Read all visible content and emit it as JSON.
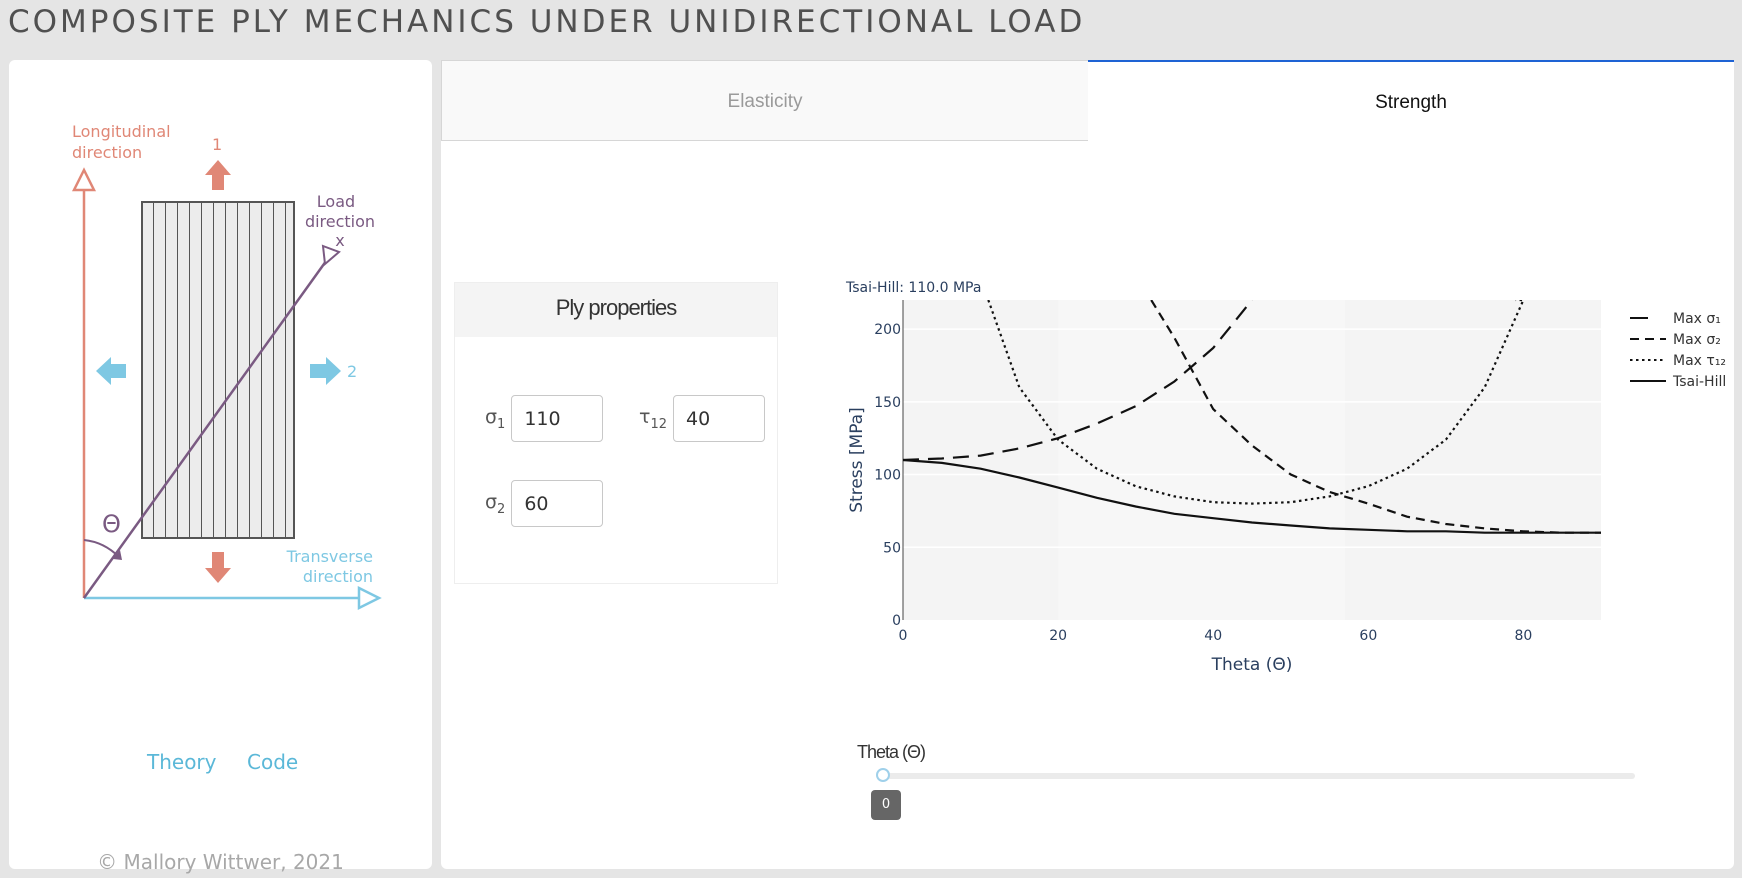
{
  "app": {
    "title": "COMPOSITE PLY MECHANICS UNDER UNIDIRECTIONAL LOAD"
  },
  "schematic": {
    "longitudinal_line1": "Longitudinal",
    "longitudinal_line2": "direction",
    "axis1": "1",
    "axis2": "2",
    "load_line1": "Load",
    "load_line2": "direction",
    "load_x": "x",
    "theta": "Θ",
    "transverse_line1": "Transverse",
    "transverse_line2": "direction",
    "colors": {
      "longitudinal": "#e08776",
      "transverse": "#7ec8e3",
      "load": "#7a5a82",
      "ply": "#555555"
    }
  },
  "links": {
    "theory": "Theory",
    "code": "Code"
  },
  "footer": {
    "copyright": "© Mallory Wittwer, 2021"
  },
  "tabs": {
    "elasticity": "Elasticity",
    "strength": "Strength"
  },
  "properties": {
    "header": "Ply properties",
    "sigma1": {
      "sym": "σ",
      "sub": "1",
      "value": "110"
    },
    "tau12": {
      "sym": "τ",
      "sub": "12",
      "value": "40"
    },
    "sigma2": {
      "sym": "σ",
      "sub": "2",
      "value": "60"
    }
  },
  "chart_data": {
    "type": "line",
    "annotation": "Tsai-Hill: 110.0 MPa",
    "xlabel": "Theta (Θ)",
    "ylabel": "Stress [MPa]",
    "xlim": [
      0,
      90
    ],
    "ylim": [
      0,
      220
    ],
    "xticks": [
      0,
      20,
      40,
      60,
      80
    ],
    "yticks": [
      0,
      50,
      100,
      150,
      200
    ],
    "legend_position": "top-right",
    "series": [
      {
        "name": "Max σ₁",
        "dash": "long-dash",
        "x": [
          0,
          5,
          10,
          15,
          20,
          25,
          30,
          35,
          40,
          45
        ],
        "y": [
          110,
          111,
          113,
          118,
          125,
          135,
          147,
          164,
          187,
          220
        ]
      },
      {
        "name": "Max σ₂",
        "dash": "dash",
        "x": [
          32,
          35,
          40,
          45,
          50,
          55,
          60,
          65,
          70,
          75,
          80,
          85,
          90
        ],
        "y": [
          220,
          194,
          145,
          120,
          100,
          88,
          80,
          71,
          66,
          63,
          61,
          60,
          60
        ]
      },
      {
        "name": "Max τ₁₂",
        "dash": "dot",
        "x": [
          11,
          15,
          20,
          25,
          30,
          35,
          40,
          45,
          50,
          55,
          60,
          65,
          70,
          75,
          80,
          79
        ],
        "y": [
          220,
          160,
          124,
          104,
          92,
          85,
          81,
          80,
          81,
          85,
          92,
          104,
          124,
          160,
          220,
          220
        ]
      },
      {
        "name": "Tsai-Hill",
        "dash": "solid",
        "x": [
          0,
          5,
          10,
          15,
          20,
          25,
          30,
          35,
          40,
          45,
          50,
          55,
          60,
          65,
          70,
          75,
          80,
          85,
          90
        ],
        "y": [
          110,
          108,
          104,
          98,
          91,
          84,
          78,
          73,
          70,
          67,
          65,
          63,
          62,
          61,
          61,
          60,
          60,
          60,
          60
        ]
      }
    ]
  },
  "slider": {
    "label": "Theta (Θ)",
    "value": "0",
    "value_fraction": 0.0
  }
}
